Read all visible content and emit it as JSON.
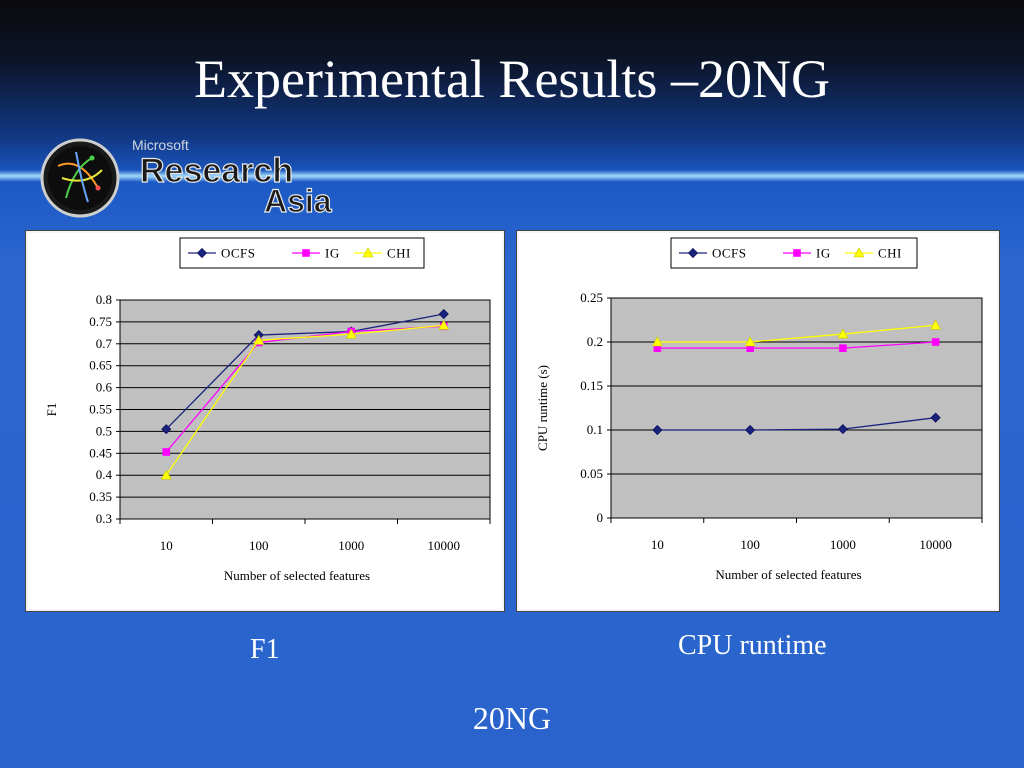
{
  "slide": {
    "title": "Experimental Results –20NG",
    "logo": {
      "top_text": "Microsoft",
      "main_text": "Research",
      "sub_text": "Asia"
    }
  },
  "captions": {
    "left": "F1",
    "right": "CPU runtime",
    "bottom": "20NG"
  },
  "colors": {
    "OCFS": "#1a237e",
    "IG": "#ff00ff",
    "CHI": "#ffff00",
    "plot_bg": "#c0c0c0",
    "grid": "#000000"
  },
  "chart_data": [
    {
      "type": "line",
      "title": "",
      "xlabel": "Number of selected features",
      "ylabel": "F1",
      "categories": [
        "10",
        "100",
        "1000",
        "10000"
      ],
      "ylim": [
        0.3,
        0.8
      ],
      "yticks": [
        "0.3",
        "0.35",
        "0.4",
        "0.45",
        "0.5",
        "0.55",
        "0.6",
        "0.65",
        "0.7",
        "0.75",
        "0.8"
      ],
      "grid": true,
      "legend": "top",
      "series": [
        {
          "name": "OCFS",
          "marker": "diamond",
          "values": [
            0.505,
            0.72,
            0.728,
            0.768
          ]
        },
        {
          "name": "IG",
          "marker": "square",
          "values": [
            0.453,
            0.703,
            0.728,
            0.74
          ]
        },
        {
          "name": "CHI",
          "marker": "triangle",
          "values": [
            0.4,
            0.708,
            0.722,
            0.742
          ]
        }
      ]
    },
    {
      "type": "line",
      "title": "",
      "xlabel": "Number of selected features",
      "ylabel": "CPU runtime (s)",
      "categories": [
        "10",
        "100",
        "1000",
        "10000"
      ],
      "ylim": [
        0,
        0.25
      ],
      "yticks": [
        "0",
        "0.05",
        "0.1",
        "0.15",
        "0.2",
        "0.25"
      ],
      "grid": true,
      "legend": "top",
      "series": [
        {
          "name": "OCFS",
          "marker": "diamond",
          "values": [
            0.1,
            0.1,
            0.101,
            0.114
          ]
        },
        {
          "name": "IG",
          "marker": "square",
          "values": [
            0.193,
            0.193,
            0.193,
            0.2
          ]
        },
        {
          "name": "CHI",
          "marker": "triangle",
          "values": [
            0.2,
            0.2,
            0.209,
            0.219
          ]
        }
      ]
    }
  ]
}
